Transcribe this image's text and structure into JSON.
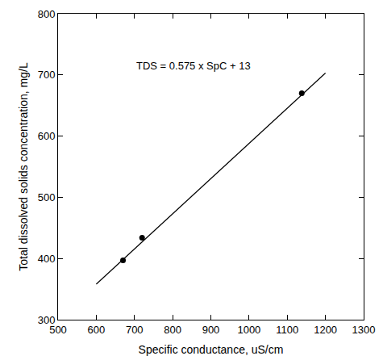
{
  "chart_data": {
    "type": "scatter",
    "x_label": "Specific conductance, uS/cm",
    "y_label": "Total dissolved solids concentration, mg/L",
    "annotations": [
      "TDS = 0.575 x SpC + 13"
    ],
    "series": [
      {
        "type": "scatter",
        "color": "#000000",
        "marker": "circle",
        "x": [
          670,
          720,
          1138
        ],
        "values": [
          397,
          434,
          670
        ]
      },
      {
        "type": "line",
        "color": "#000000",
        "line_style": "solid",
        "x": [
          600,
          1200
        ],
        "values": [
          358,
          703
        ]
      }
    ],
    "xlim": [
      500,
      1300
    ],
    "xticks": [
      500,
      600,
      700,
      800,
      900,
      1000,
      1100,
      1200,
      1300
    ],
    "ylim": [
      300,
      800
    ],
    "yticks": [
      300,
      400,
      500,
      600,
      700,
      800
    ],
    "grid": false
  }
}
